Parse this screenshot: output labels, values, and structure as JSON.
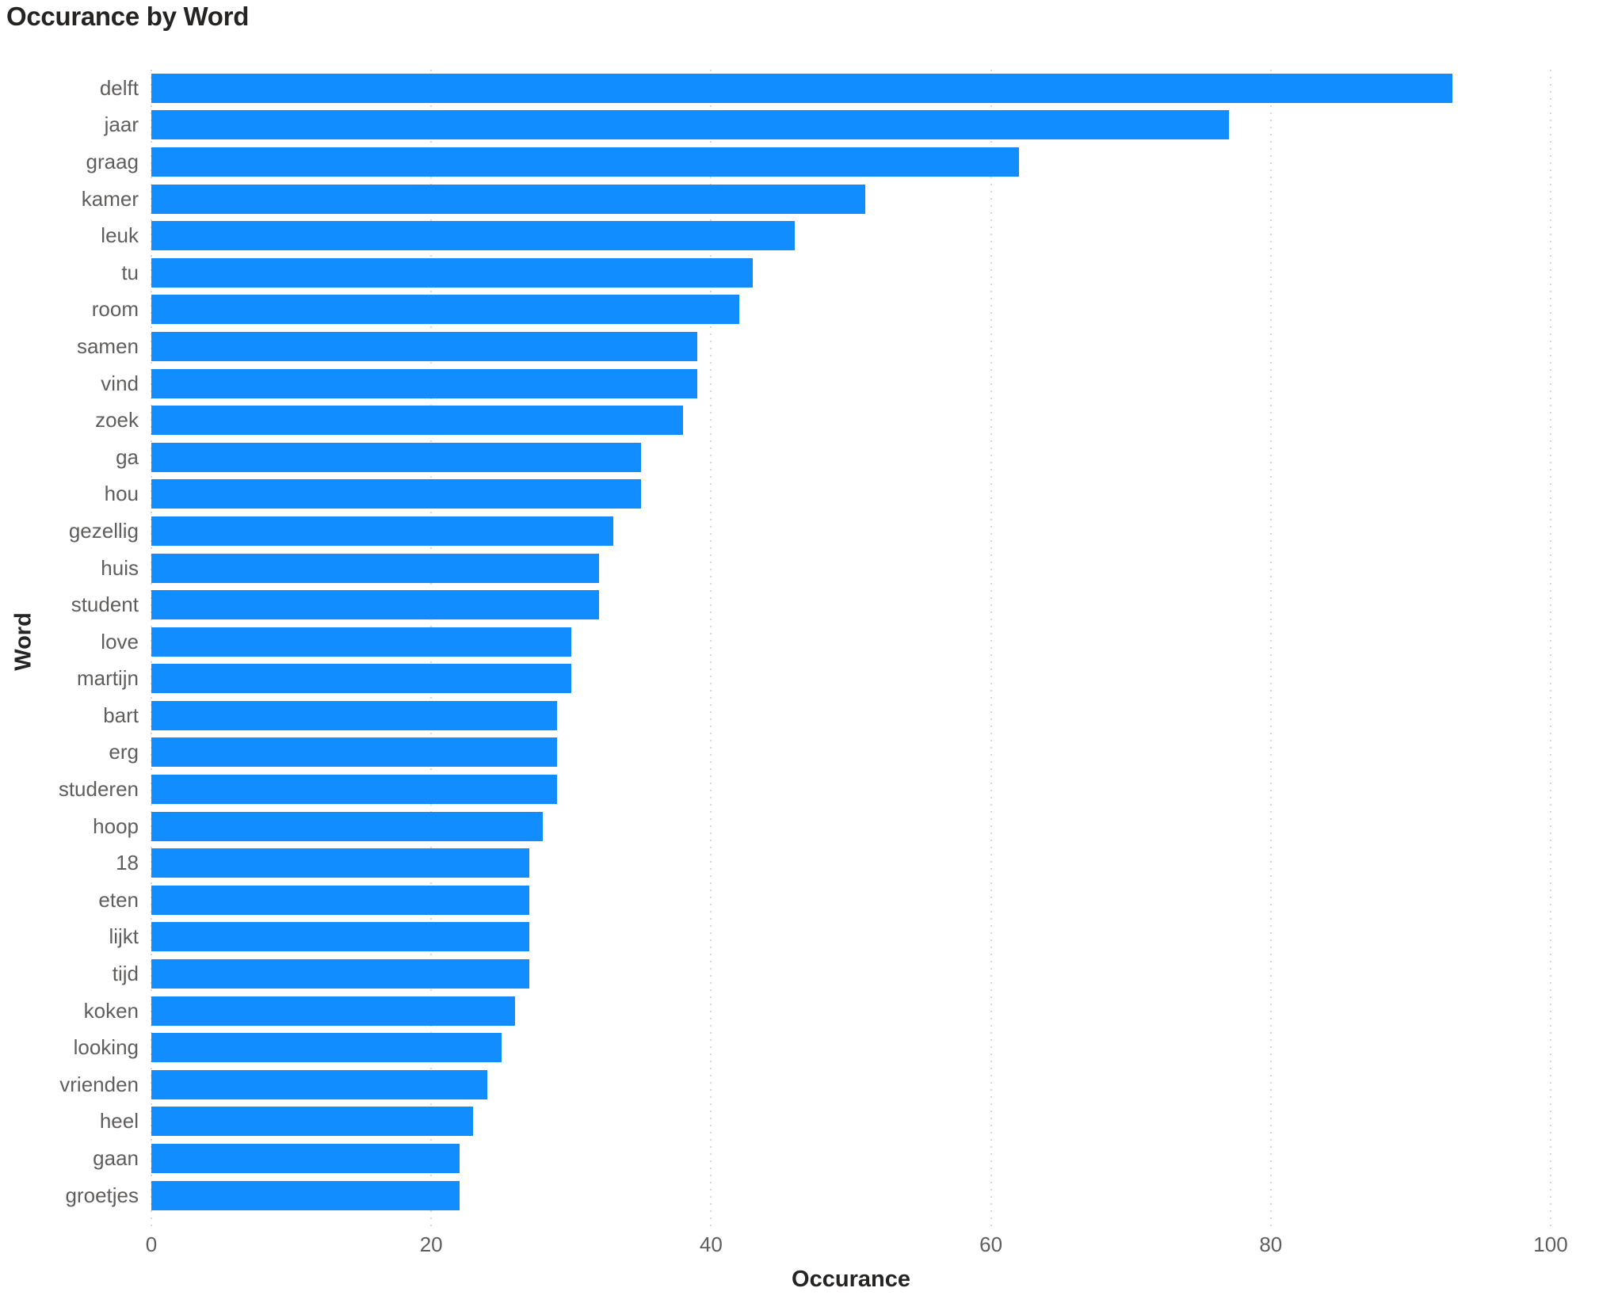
{
  "chart_data": {
    "type": "bar",
    "orientation": "horizontal",
    "title": "Occurance by Word",
    "xlabel": "Occurance",
    "ylabel": "Word",
    "xlim": [
      0,
      100
    ],
    "xticks": [
      0,
      20,
      40,
      60,
      80,
      100
    ],
    "grid": "vertical-dotted",
    "legend": "none",
    "bar_color": "#118DFF",
    "title_color": "#252423",
    "axis_label_color": "#605E5C",
    "gridline_color": "#D8D8D8",
    "categories": [
      "delft",
      "jaar",
      "graag",
      "kamer",
      "leuk",
      "tu",
      "room",
      "samen",
      "vind",
      "zoek",
      "ga",
      "hou",
      "gezellig",
      "huis",
      "student",
      "love",
      "martijn",
      "bart",
      "erg",
      "studeren",
      "hoop",
      "18",
      "eten",
      "lijkt",
      "tijd",
      "koken",
      "looking",
      "vrienden",
      "heel",
      "gaan",
      "groetjes"
    ],
    "values": [
      93,
      77,
      62,
      51,
      46,
      43,
      42,
      39,
      39,
      38,
      35,
      35,
      33,
      32,
      32,
      30,
      30,
      29,
      29,
      29,
      28,
      27,
      27,
      27,
      27,
      26,
      25,
      24,
      23,
      22,
      22
    ]
  }
}
